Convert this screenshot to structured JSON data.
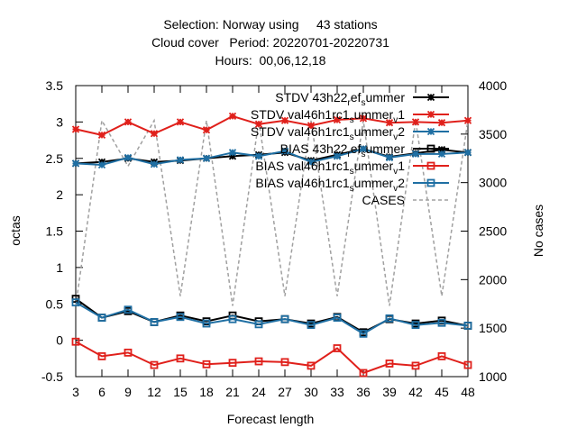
{
  "chart_data": {
    "type": "line",
    "title_lines": [
      "Selection: Norway using     43 stations",
      "Cloud cover   Period: 20220701-20220731",
      "Hours:  00,06,12,18"
    ],
    "xlabel": "Forecast length",
    "ylabel": "octas",
    "y2label": "No cases",
    "x": [
      3,
      6,
      9,
      12,
      15,
      18,
      21,
      24,
      27,
      30,
      33,
      36,
      39,
      42,
      45,
      48
    ],
    "ylim": [
      -0.5,
      3.5
    ],
    "y_ticks": [
      "-0.5",
      "0",
      "0.5",
      "1",
      "1.5",
      "2",
      "2.5",
      "3",
      "3.5"
    ],
    "y_tick_values": [
      -0.5,
      0,
      0.5,
      1,
      1.5,
      2,
      2.5,
      3,
      3.5
    ],
    "y2lim": [
      1000,
      4000
    ],
    "y2_ticks": [
      "1000",
      "1500",
      "2000",
      "2500",
      "3000",
      "3500",
      "4000"
    ],
    "y2_tick_values": [
      1000,
      1500,
      2000,
      2500,
      3000,
      3500,
      4000
    ],
    "legend_position": "top-right",
    "series": [
      {
        "legend": [
          "STDV 43h22",
          "r",
          "ef",
          "s",
          "ummer"
        ],
        "color": "#000000",
        "marker": "star",
        "dashed": false,
        "axis": "y",
        "values": [
          2.43,
          2.45,
          2.5,
          2.45,
          2.47,
          2.5,
          2.53,
          2.55,
          2.58,
          2.47,
          2.55,
          2.63,
          2.52,
          2.57,
          2.62,
          2.58
        ]
      },
      {
        "legend": [
          "STDV val46h1rc1",
          "s",
          "ummer",
          "v",
          "1"
        ],
        "color": "#e0201b",
        "marker": "star",
        "dashed": false,
        "axis": "y",
        "values": [
          2.9,
          2.82,
          3.0,
          2.84,
          3.0,
          2.89,
          3.08,
          2.97,
          3.02,
          2.95,
          3.03,
          3.05,
          2.99,
          3.0,
          2.99,
          3.02
        ]
      },
      {
        "legend": [
          "STDV val46h1rc1",
          "s",
          "ummer",
          "v",
          "2"
        ],
        "color": "#1f6fa3",
        "marker": "star",
        "dashed": false,
        "axis": "y",
        "values": [
          2.43,
          2.41,
          2.51,
          2.42,
          2.48,
          2.5,
          2.58,
          2.53,
          2.6,
          2.45,
          2.53,
          2.63,
          2.51,
          2.56,
          2.56,
          2.58
        ]
      },
      {
        "legend": [
          "BIAS 43h22",
          "r",
          "ef",
          "s",
          "ummer"
        ],
        "color": "#000000",
        "marker": "square",
        "dashed": false,
        "axis": "y",
        "values": [
          0.57,
          0.31,
          0.4,
          0.25,
          0.34,
          0.26,
          0.34,
          0.26,
          0.29,
          0.23,
          0.32,
          0.11,
          0.29,
          0.23,
          0.27,
          0.2
        ]
      },
      {
        "legend": [
          "BIAS val46h1rc1",
          "s",
          "ummer",
          "v",
          "1"
        ],
        "color": "#e0201b",
        "marker": "square",
        "dashed": false,
        "axis": "y",
        "values": [
          -0.02,
          -0.22,
          -0.17,
          -0.34,
          -0.25,
          -0.33,
          -0.31,
          -0.29,
          -0.3,
          -0.35,
          -0.11,
          -0.45,
          -0.32,
          -0.35,
          -0.22,
          -0.34
        ]
      },
      {
        "legend": [
          "BIAS val46h1rc1",
          "s",
          "ummer",
          "v",
          "2"
        ],
        "color": "#1f6fa3",
        "marker": "square",
        "dashed": false,
        "axis": "y",
        "values": [
          0.52,
          0.31,
          0.42,
          0.25,
          0.32,
          0.23,
          0.29,
          0.22,
          0.29,
          0.21,
          0.31,
          0.09,
          0.3,
          0.21,
          0.24,
          0.2
        ]
      },
      {
        "legend": [
          "CASES"
        ],
        "color": "#a0a0a0",
        "marker": "none",
        "dashed": true,
        "axis": "y2",
        "values": [
          1730,
          3640,
          3170,
          3640,
          1830,
          3640,
          1730,
          3640,
          1830,
          3640,
          1830,
          3640,
          1730,
          3640,
          1830,
          3640
        ]
      }
    ]
  }
}
